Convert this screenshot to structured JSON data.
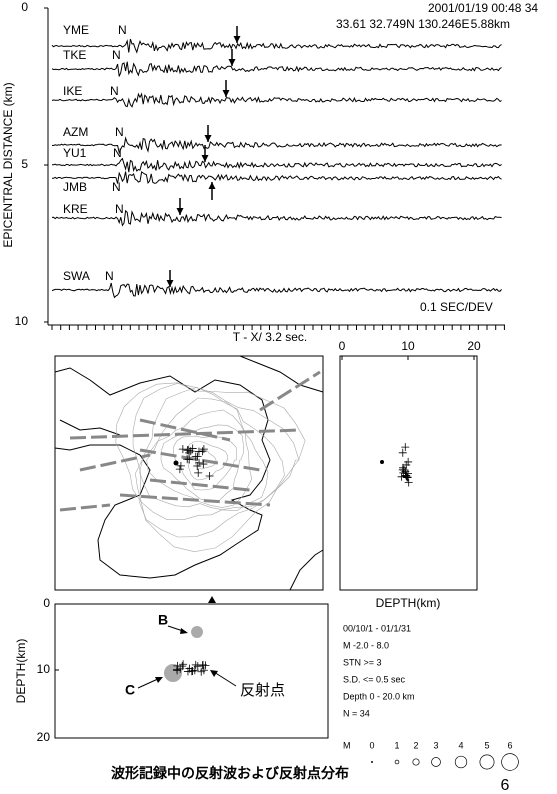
{
  "seismogram": {
    "event": {
      "datetime": "2001/01/19  00:48 34",
      "location": "33.61 32.749N 130.246E",
      "depth": "5.88km"
    },
    "y_label": "EPICENTRAL DISTANCE (km)",
    "y_ticks": [
      0,
      5,
      10
    ],
    "x_label": "T - X/ 3.2 sec.",
    "scale": "0.1 SEC/DEV",
    "stations": [
      {
        "name": "YME",
        "phase": "N"
      },
      {
        "name": "TKE",
        "phase": "N"
      },
      {
        "name": "IKE",
        "phase": "N"
      },
      {
        "name": "AZM",
        "phase": "N"
      },
      {
        "name": "YU1",
        "phase": "N"
      },
      {
        "name": "JMB",
        "phase": "N"
      },
      {
        "name": "KRE",
        "phase": "N"
      },
      {
        "name": "SWA",
        "phase": "N"
      }
    ]
  },
  "depth_profile": {
    "x_label": "DEPTH(km)",
    "x_ticks": [
      0,
      10,
      20
    ]
  },
  "depth_section": {
    "y_label": "DEPTH(km)",
    "y_ticks": [
      0,
      10,
      20
    ],
    "annotations": {
      "b": "B",
      "c": "C",
      "reflection_points": "反射点"
    }
  },
  "legend": {
    "lines": [
      "00/10/1 - 01/1/31",
      "M -2.0 -  8.0",
      "STN >= 3",
      "S.D. <= 0.5 sec",
      "Depth 0 - 20.0 km",
      "N = 34"
    ],
    "magnitude_label": "M",
    "magnitudes": [
      0,
      1,
      2,
      3,
      4,
      5,
      6
    ]
  },
  "caption": "波形記録中の反射波および反射点分布",
  "page_number": "6"
}
